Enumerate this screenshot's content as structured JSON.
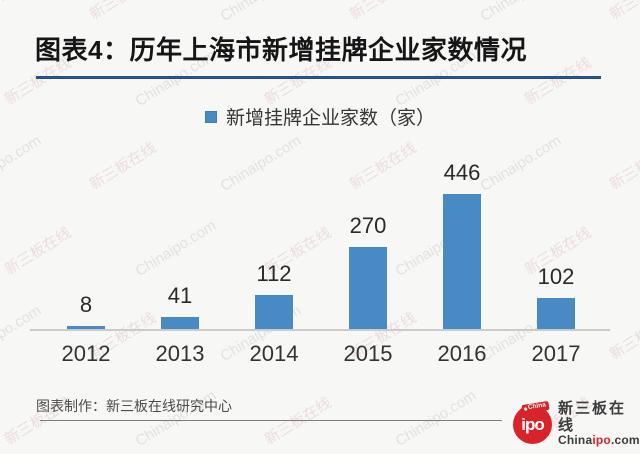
{
  "title": "图表4：历年上海市新增挂牌企业家数情况",
  "legend": {
    "label": "新增挂牌企业家数（家）",
    "swatch_color": "#4a8ac4"
  },
  "chart_data": {
    "type": "bar",
    "categories": [
      "2012",
      "2013",
      "2014",
      "2015",
      "2016",
      "2017"
    ],
    "values": [
      8,
      41,
      112,
      270,
      446,
      102
    ],
    "series": [
      {
        "name": "新增挂牌企业家数（家）",
        "values": [
          8,
          41,
          112,
          270,
          446,
          102
        ]
      }
    ],
    "title": "图表4：历年上海市新增挂牌企业家数情况",
    "xlabel": "",
    "ylabel": "",
    "ylim": [
      0,
      460
    ],
    "grid": false,
    "legend_position": "top-center",
    "value_labels_shown": true,
    "bar_color": "#4a8ac4"
  },
  "footer": {
    "credit": "图表制作：新三板在线研究中心"
  },
  "logo": {
    "circle_text": "ipo",
    "flag_text": "China",
    "brand_cn": "新三板在线",
    "en_china": "China",
    "en_ipo": "ipo",
    "en_com": ".com",
    "red": "#d8232a"
  },
  "watermark": {
    "texts": [
      "Chinaipo.com",
      "新三板在线"
    ]
  },
  "colors": {
    "background": "#f7f7f6",
    "accent_blue": "#4a8ac4",
    "title_rule_navy": "#27508e",
    "axis_line_gray": "#cbcbcb",
    "logo_red": "#d8232a"
  }
}
